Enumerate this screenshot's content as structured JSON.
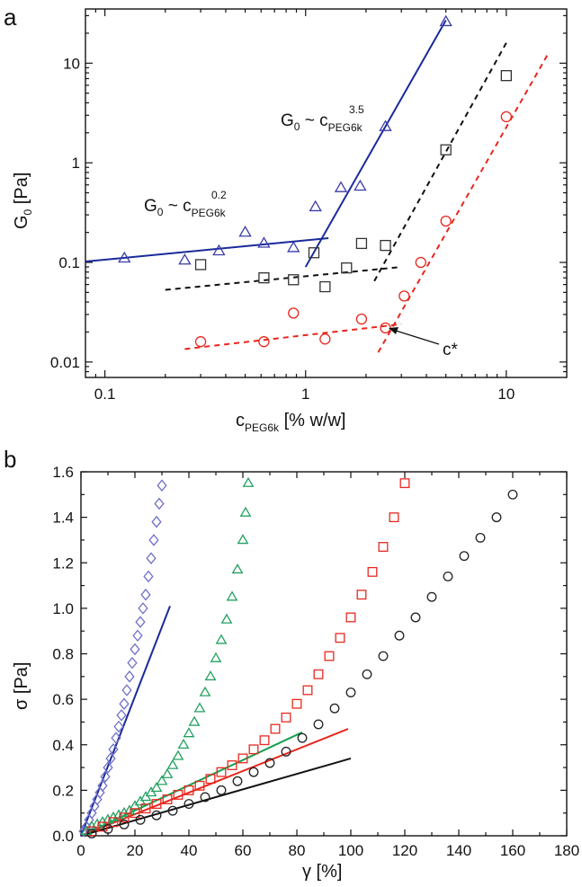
{
  "panel_a": {
    "letter": "a",
    "ylabel_main": "G",
    "ylabel_sub": "0",
    "ylabel_rest": " [Pa]",
    "xlabel_main": "c",
    "xlabel_sub": "PEG6k",
    "xlabel_rest": " [% w/w]",
    "x_ticks": [
      {
        "v": 0.1,
        "label": "0.1"
      },
      {
        "v": 1,
        "label": "1"
      },
      {
        "v": 10,
        "label": "10"
      }
    ],
    "y_ticks": [
      {
        "v": 0.01,
        "label": "0.01"
      },
      {
        "v": 0.1,
        "label": "0.1"
      },
      {
        "v": 1,
        "label": "1"
      },
      {
        "v": 10,
        "label": "10"
      }
    ],
    "annotations": {
      "law_low": {
        "g": "G",
        "sub0": "0",
        "tilde": " ~ c",
        "sub": "PEG6k",
        "sup": "0.2"
      },
      "law_high": {
        "g": "G",
        "sub0": "0",
        "tilde": " ~ c",
        "sub": "PEG6k",
        "sup": "3.5"
      },
      "cstar": "c*"
    }
  },
  "panel_b": {
    "letter": "b",
    "ylabel": "σ [Pa]",
    "xlabel": "γ [%]",
    "x_ticks": [
      "0",
      "20",
      "40",
      "60",
      "80",
      "100",
      "120",
      "140",
      "160",
      "180"
    ],
    "y_ticks": [
      "0.0",
      "0.2",
      "0.4",
      "0.6",
      "0.8",
      "1.0",
      "1.2",
      "1.4",
      "1.6"
    ]
  },
  "chart_data": [
    {
      "type": "scatter",
      "xscale": "log",
      "yscale": "log",
      "xlim": [
        0.08,
        20
      ],
      "ylim": [
        0.007,
        35
      ],
      "xlabel": "cPEG6k [% w/w]",
      "ylabel": "G0 [Pa]",
      "series": [
        {
          "marker": "triangle",
          "color": "#3a3aa8",
          "points": [
            [
              0.125,
              0.11
            ],
            [
              0.25,
              0.105
            ],
            [
              0.37,
              0.13
            ],
            [
              0.5,
              0.2
            ],
            [
              0.62,
              0.155
            ],
            [
              0.87,
              0.14
            ],
            [
              1.12,
              0.36
            ],
            [
              1.5,
              0.56
            ],
            [
              1.87,
              0.58
            ],
            [
              2.5,
              2.3
            ],
            [
              5,
              26
            ]
          ]
        },
        {
          "marker": "square",
          "color": "#333333",
          "points": [
            [
              0.3,
              0.095
            ],
            [
              0.62,
              0.07
            ],
            [
              0.87,
              0.067
            ],
            [
              1.1,
              0.125
            ],
            [
              1.25,
              0.057
            ],
            [
              1.6,
              0.088
            ],
            [
              1.9,
              0.155
            ],
            [
              2.5,
              0.148
            ],
            [
              5,
              1.35
            ],
            [
              10,
              7.5
            ]
          ]
        },
        {
          "marker": "circle",
          "color": "#e8261c",
          "points": [
            [
              0.3,
              0.016
            ],
            [
              0.62,
              0.016
            ],
            [
              0.87,
              0.031
            ],
            [
              1.25,
              0.017
            ],
            [
              1.9,
              0.027
            ],
            [
              2.5,
              0.022
            ],
            [
              3.1,
              0.046
            ],
            [
              3.75,
              0.1
            ],
            [
              5,
              0.26
            ],
            [
              10,
              2.9
            ]
          ]
        }
      ],
      "fits": [
        {
          "color": "#1a2a9a",
          "dash": false,
          "points": [
            [
              0.08,
              0.102
            ],
            [
              1.3,
              0.175
            ]
          ]
        },
        {
          "color": "#1a2a9a",
          "dash": false,
          "points": [
            [
              1.0,
              0.09
            ],
            [
              5,
              27
            ]
          ]
        },
        {
          "color": "#111111",
          "dash": true,
          "points": [
            [
              0.2,
              0.053
            ],
            [
              3,
              0.09
            ]
          ]
        },
        {
          "color": "#111111",
          "dash": true,
          "points": [
            [
              2.2,
              0.065
            ],
            [
              10,
              16
            ]
          ]
        },
        {
          "color": "#e8261c",
          "dash": true,
          "points": [
            [
              0.25,
              0.0135
            ],
            [
              3,
              0.024
            ]
          ]
        },
        {
          "color": "#e8261c",
          "dash": true,
          "points": [
            [
              2.3,
              0.0125
            ],
            [
              16,
              12
            ]
          ]
        }
      ]
    },
    {
      "type": "scatter",
      "xlim": [
        0,
        180
      ],
      "ylim": [
        0,
        1.6
      ],
      "xlabel": "γ [%]",
      "ylabel": "σ [Pa]",
      "series": [
        {
          "marker": "diamond",
          "color": "#7070c8",
          "points": [
            [
              1,
              0.02
            ],
            [
              2,
              0.04
            ],
            [
              3,
              0.07
            ],
            [
              4,
              0.1
            ],
            [
              5,
              0.13
            ],
            [
              6,
              0.16
            ],
            [
              7,
              0.19
            ],
            [
              8,
              0.22
            ],
            [
              9,
              0.26
            ],
            [
              10,
              0.3
            ],
            [
              11,
              0.34
            ],
            [
              12,
              0.38
            ],
            [
              13,
              0.43
            ],
            [
              14,
              0.48
            ],
            [
              15,
              0.53
            ],
            [
              16,
              0.58
            ],
            [
              17,
              0.64
            ],
            [
              18,
              0.7
            ],
            [
              19,
              0.76
            ],
            [
              20,
              0.82
            ],
            [
              21,
              0.88
            ],
            [
              22,
              0.94
            ],
            [
              23,
              1.0
            ],
            [
              24,
              1.06
            ],
            [
              25,
              1.14
            ],
            [
              26,
              1.22
            ],
            [
              27,
              1.3
            ],
            [
              28,
              1.38
            ],
            [
              29,
              1.46
            ],
            [
              30,
              1.54
            ]
          ]
        },
        {
          "marker": "triangle",
          "color": "#22a060",
          "points": [
            [
              2,
              0.02
            ],
            [
              4,
              0.04
            ],
            [
              6,
              0.05
            ],
            [
              8,
              0.06
            ],
            [
              10,
              0.07
            ],
            [
              12,
              0.08
            ],
            [
              14,
              0.09
            ],
            [
              16,
              0.1
            ],
            [
              18,
              0.11
            ],
            [
              20,
              0.13
            ],
            [
              22,
              0.15
            ],
            [
              24,
              0.17
            ],
            [
              26,
              0.19
            ],
            [
              28,
              0.21
            ],
            [
              30,
              0.24
            ],
            [
              32,
              0.27
            ],
            [
              34,
              0.31
            ],
            [
              36,
              0.35
            ],
            [
              38,
              0.4
            ],
            [
              40,
              0.45
            ],
            [
              42,
              0.5
            ],
            [
              44,
              0.56
            ],
            [
              46,
              0.63
            ],
            [
              48,
              0.7
            ],
            [
              50,
              0.78
            ],
            [
              52,
              0.86
            ],
            [
              54,
              0.95
            ],
            [
              56,
              1.05
            ],
            [
              58,
              1.17
            ],
            [
              60,
              1.3
            ],
            [
              61,
              1.42
            ],
            [
              62,
              1.55
            ]
          ]
        },
        {
          "marker": "square",
          "color": "#e82820",
          "points": [
            [
              4,
              0.02
            ],
            [
              8,
              0.04
            ],
            [
              12,
              0.06
            ],
            [
              16,
              0.08
            ],
            [
              20,
              0.1
            ],
            [
              24,
              0.12
            ],
            [
              28,
              0.14
            ],
            [
              32,
              0.16
            ],
            [
              36,
              0.18
            ],
            [
              40,
              0.2
            ],
            [
              44,
              0.22
            ],
            [
              48,
              0.25
            ],
            [
              52,
              0.28
            ],
            [
              56,
              0.31
            ],
            [
              60,
              0.34
            ],
            [
              64,
              0.38
            ],
            [
              68,
              0.42
            ],
            [
              72,
              0.47
            ],
            [
              76,
              0.52
            ],
            [
              80,
              0.58
            ],
            [
              84,
              0.64
            ],
            [
              88,
              0.71
            ],
            [
              92,
              0.79
            ],
            [
              96,
              0.87
            ],
            [
              100,
              0.96
            ],
            [
              104,
              1.06
            ],
            [
              108,
              1.16
            ],
            [
              112,
              1.27
            ],
            [
              116,
              1.4
            ],
            [
              120,
              1.55
            ]
          ]
        },
        {
          "marker": "circle",
          "color": "#222222",
          "points": [
            [
              4,
              0.01
            ],
            [
              10,
              0.03
            ],
            [
              16,
              0.05
            ],
            [
              22,
              0.07
            ],
            [
              28,
              0.09
            ],
            [
              34,
              0.11
            ],
            [
              40,
              0.14
            ],
            [
              46,
              0.17
            ],
            [
              52,
              0.2
            ],
            [
              58,
              0.24
            ],
            [
              64,
              0.28
            ],
            [
              70,
              0.32
            ],
            [
              76,
              0.37
            ],
            [
              82,
              0.43
            ],
            [
              88,
              0.49
            ],
            [
              94,
              0.56
            ],
            [
              100,
              0.63
            ],
            [
              106,
              0.71
            ],
            [
              112,
              0.79
            ],
            [
              118,
              0.88
            ],
            [
              124,
              0.96
            ],
            [
              130,
              1.05
            ],
            [
              136,
              1.14
            ],
            [
              142,
              1.23
            ],
            [
              148,
              1.31
            ],
            [
              154,
              1.4
            ],
            [
              160,
              1.5
            ]
          ]
        }
      ],
      "fits": [
        {
          "color": "#1a2a9a",
          "points": [
            [
              0,
              0
            ],
            [
              33,
              1.01
            ]
          ]
        },
        {
          "color": "#16a050",
          "points": [
            [
              0,
              0
            ],
            [
              82,
              0.455
            ]
          ]
        },
        {
          "color": "#e8261c",
          "points": [
            [
              0,
              0
            ],
            [
              99,
              0.47
            ]
          ]
        },
        {
          "color": "#111111",
          "points": [
            [
              0,
              0
            ],
            [
              100,
              0.34
            ]
          ]
        }
      ]
    }
  ]
}
